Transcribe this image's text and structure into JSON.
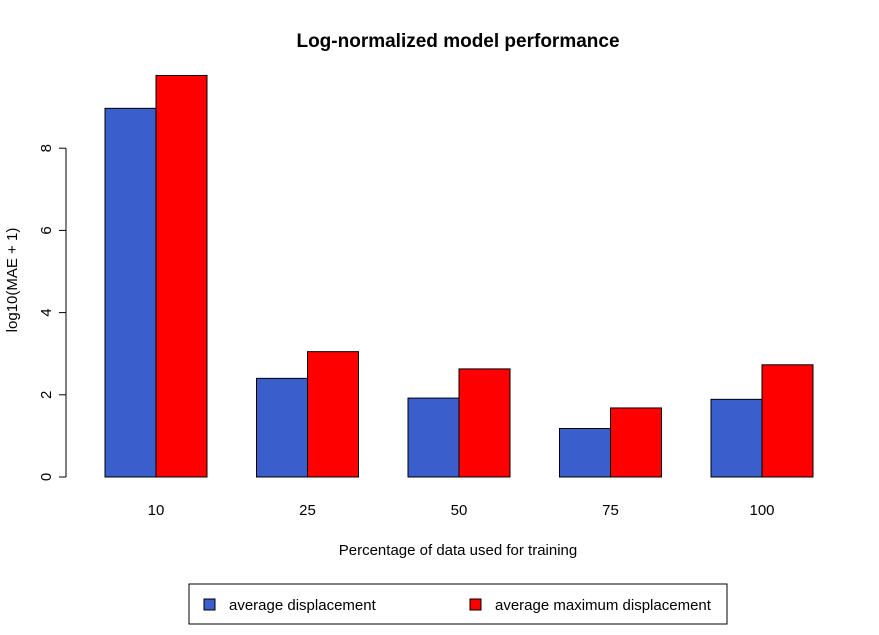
{
  "chart_data": {
    "type": "bar",
    "title": "Log-normalized model performance",
    "xlabel": "Percentage of data used for training",
    "ylabel": "log10(MAE + 1)",
    "categories": [
      "10",
      "25",
      "50",
      "75",
      "100"
    ],
    "series": [
      {
        "name": "average displacement",
        "color": "#3a5fcd",
        "values": [
          8.97,
          2.4,
          1.92,
          1.18,
          1.89
        ]
      },
      {
        "name": "average maximum displacement",
        "color": "#ff0000",
        "values": [
          9.77,
          3.05,
          2.63,
          1.68,
          2.73
        ]
      }
    ],
    "ylim": [
      0,
      9.9
    ],
    "yticks": [
      0,
      2,
      4,
      6,
      8
    ],
    "grid": false,
    "legend_position": "bottom"
  }
}
